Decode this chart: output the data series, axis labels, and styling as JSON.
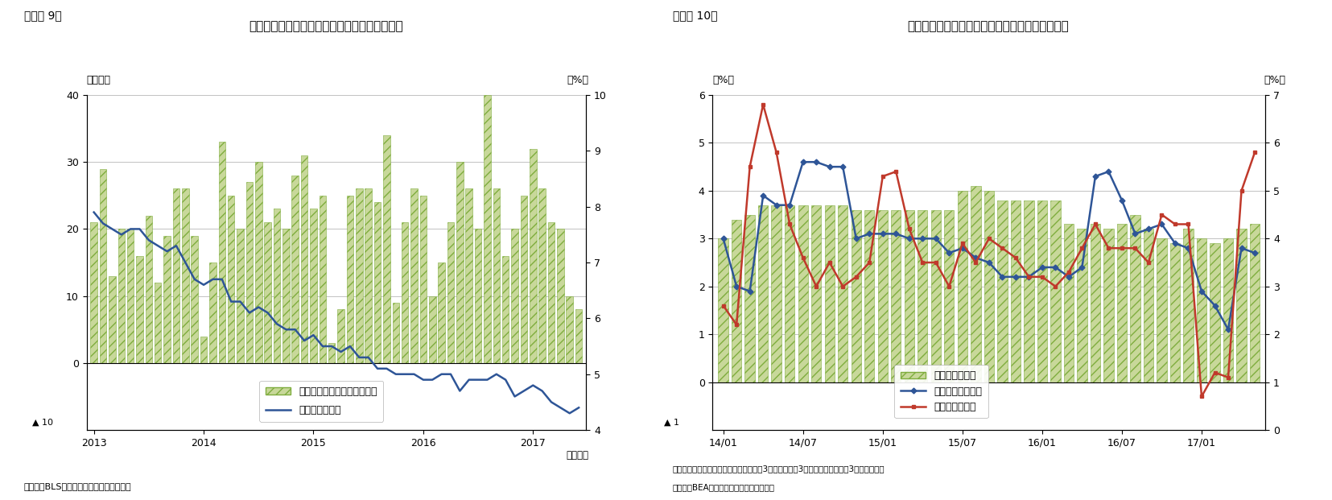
{
  "chart1": {
    "title": "米国の雇用動向（非農業部門雇用増と失業率）",
    "label_left": "（万人）",
    "label_right": "（%）",
    "figure_label": "（図表 9）",
    "ylim_left": [
      -10,
      40
    ],
    "ylim_right": [
      4,
      10
    ],
    "yticks_left": [
      0,
      10,
      20,
      30,
      40
    ],
    "yticks_right": [
      4,
      5,
      6,
      7,
      8,
      9,
      10
    ],
    "source": "（資料）BLSよりニッセイ基礎研究所作成",
    "xlabel": "（月次）",
    "bar_color": "#c8d89a",
    "bar_hatch": "///",
    "bar_edge_color": "#7fad3e",
    "line_color": "#2e5597",
    "bar_values": [
      21,
      29,
      13,
      20,
      20,
      16,
      22,
      12,
      19,
      26,
      26,
      19,
      4,
      15,
      33,
      25,
      20,
      27,
      30,
      21,
      23,
      20,
      28,
      31,
      23,
      25,
      3,
      8,
      25,
      26,
      26,
      24,
      34,
      9,
      21,
      26,
      25,
      10,
      15,
      21,
      30,
      26,
      20,
      40,
      26,
      16,
      20,
      25,
      32,
      26,
      21,
      20,
      10,
      8
    ],
    "unemployment_values": [
      7.9,
      7.7,
      7.6,
      7.5,
      7.6,
      7.6,
      7.4,
      7.3,
      7.2,
      7.3,
      7.0,
      6.7,
      6.6,
      6.7,
      6.7,
      6.3,
      6.3,
      6.1,
      6.2,
      6.1,
      5.9,
      5.8,
      5.8,
      5.6,
      5.7,
      5.5,
      5.5,
      5.4,
      5.5,
      5.3,
      5.3,
      5.1,
      5.1,
      5.0,
      5.0,
      5.0,
      4.9,
      4.9,
      5.0,
      5.0,
      4.7,
      4.9,
      4.9,
      4.9,
      5.0,
      4.9,
      4.6,
      4.7,
      4.8,
      4.7,
      4.5,
      4.4,
      4.3,
      4.4
    ],
    "xtick_positions": [
      0,
      12,
      24,
      36,
      48
    ],
    "xtick_labels": [
      "2013",
      "2014",
      "2015",
      "2016",
      "2017"
    ]
  },
  "chart2": {
    "title": "個人消費支出、可処分所得および貯蓄率（実質）",
    "label_left": "（%）",
    "label_right": "（%）",
    "figure_label": "（図表 10）",
    "ylim_left": [
      -1,
      6
    ],
    "ylim_right": [
      0,
      7
    ],
    "yticks_left": [
      0,
      1,
      2,
      3,
      4,
      5,
      6
    ],
    "yticks_right": [
      0,
      1,
      2,
      3,
      4,
      5,
      6,
      7
    ],
    "source1": "（注）季調済、個人消費、可処分所得は3ヵ月移動平均3ヵ月前比、貯蓄率は3ヵ月移動平均",
    "source2": "（資料）BEAよりニッセイ基礎研究所作成",
    "bar_color": "#c8d89a",
    "bar_hatch": "///",
    "bar_edge_color": "#7fad3e",
    "line1_color": "#2e5597",
    "line2_color": "#c0392b",
    "savings_values": [
      4.0,
      4.4,
      4.5,
      4.7,
      4.7,
      4.7,
      4.7,
      4.7,
      4.7,
      4.7,
      4.6,
      4.6,
      4.6,
      4.6,
      4.6,
      4.6,
      4.6,
      4.6,
      5.0,
      5.1,
      5.0,
      4.8,
      4.8,
      4.8,
      4.8,
      4.8,
      4.3,
      4.2,
      4.3,
      4.2,
      4.3,
      4.5,
      4.2,
      4.0,
      3.9,
      4.2,
      4.0,
      3.9,
      4.0,
      4.2,
      4.3
    ],
    "consumption_values": [
      3.0,
      2.0,
      1.9,
      3.9,
      3.7,
      3.7,
      4.6,
      4.6,
      4.5,
      4.5,
      3.0,
      3.1,
      3.1,
      3.1,
      3.0,
      3.0,
      3.0,
      2.7,
      2.8,
      2.6,
      2.5,
      2.2,
      2.2,
      2.2,
      2.4,
      2.4,
      2.2,
      2.4,
      4.3,
      4.4,
      3.8,
      3.1,
      3.2,
      3.3,
      2.9,
      2.8,
      1.9,
      1.6,
      1.1,
      2.8,
      2.7
    ],
    "disposable_values": [
      1.6,
      1.2,
      4.5,
      5.8,
      4.8,
      3.3,
      2.6,
      2.0,
      2.5,
      2.0,
      2.2,
      2.5,
      4.3,
      4.4,
      3.2,
      2.5,
      2.5,
      2.0,
      2.9,
      2.5,
      3.0,
      2.8,
      2.6,
      2.2,
      2.2,
      2.0,
      2.3,
      2.8,
      3.3,
      2.8,
      2.8,
      2.8,
      2.5,
      3.5,
      3.3,
      3.3,
      -0.3,
      0.2,
      0.1,
      4.0,
      4.8
    ],
    "xtick_positions": [
      0,
      6,
      12,
      18,
      24,
      30,
      36
    ],
    "xtick_labels": [
      "14/01",
      "14/07",
      "15/01",
      "15/07",
      "16/01",
      "16/07",
      "17/01"
    ]
  }
}
